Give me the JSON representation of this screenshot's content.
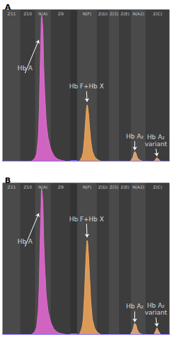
{
  "chart_data": [
    {
      "type": "area",
      "title": "A",
      "xlim": [
        0,
        300
      ],
      "ylim": [
        0,
        100
      ],
      "tick_labels": false,
      "grid": false,
      "zones": [
        {
          "label": "Z11",
          "start": 0,
          "end": 32
        },
        {
          "label": "Z10",
          "start": 32,
          "end": 58
        },
        {
          "label": "N(A)",
          "start": 58,
          "end": 87
        },
        {
          "label": "Z9",
          "start": 87,
          "end": 122
        },
        {
          "label": "N(F)",
          "start": 134,
          "end": 170
        },
        {
          "label": "Z(D)",
          "start": 170,
          "end": 191
        },
        {
          "label": "Z(S)",
          "start": 191,
          "end": 210
        },
        {
          "label": "Z(E)",
          "start": 210,
          "end": 231
        },
        {
          "label": "N(A2)",
          "start": 231,
          "end": 258
        },
        {
          "label": "Z(C)",
          "start": 258,
          "end": 300
        }
      ],
      "series": [
        {
          "name": "Hb A",
          "color": "#e86ad6",
          "x": [
            52,
            58,
            62,
            65,
            67,
            69,
            70,
            72,
            74,
            77,
            80,
            85,
            90,
            96,
            104,
            112
          ],
          "values": [
            0,
            2,
            8,
            25,
            55,
            85,
            96,
            88,
            60,
            35,
            20,
            10,
            5,
            2,
            0.5,
            0
          ]
        },
        {
          "name": "Hb F+Hb X",
          "color": "#f4a85a",
          "x": [
            138,
            143,
            146,
            149,
            151,
            152,
            154,
            157,
            160,
            164,
            170,
            176
          ],
          "values": [
            0,
            3,
            10,
            25,
            35,
            37,
            33,
            20,
            10,
            4,
            1,
            0
          ]
        },
        {
          "name": "Hb A₂",
          "color": "#f2b07a",
          "x": [
            230,
            234,
            237,
            238,
            240,
            243,
            247,
            251
          ],
          "values": [
            0,
            2,
            5.5,
            6,
            5,
            2,
            0.5,
            0
          ]
        },
        {
          "name": "Hb A₂ variant",
          "color": "#f2b07a",
          "x": [
            273,
            276,
            278,
            280,
            284
          ],
          "values": [
            0,
            1.2,
            2,
            1.2,
            0
          ]
        }
      ],
      "annotations": [
        {
          "text": "Hb A",
          "x": 40,
          "y": 58,
          "target_x": 65,
          "target_y": 80
        },
        {
          "text": "Hb F+Hb X",
          "x": 151,
          "y": 46,
          "target_x": 152,
          "target_y": 39
        },
        {
          "text": "Hb A₂",
          "x": 238,
          "y": 13,
          "target_x": 238,
          "target_y": 7
        },
        {
          "text": "Hb A₂\nvariant",
          "x": 276,
          "y": 8,
          "target_x": 278,
          "target_y": 3
        }
      ]
    },
    {
      "type": "area",
      "title": "B",
      "xlim": [
        0,
        300
      ],
      "ylim": [
        0,
        100
      ],
      "tick_labels": false,
      "grid": false,
      "zones": [
        {
          "label": "Z11",
          "start": 0,
          "end": 32
        },
        {
          "label": "Z10",
          "start": 32,
          "end": 58
        },
        {
          "label": "N(A)",
          "start": 58,
          "end": 87
        },
        {
          "label": "Z9",
          "start": 87,
          "end": 122
        },
        {
          "label": "N(F)",
          "start": 134,
          "end": 170
        },
        {
          "label": "Z(D)",
          "start": 170,
          "end": 191
        },
        {
          "label": "Z(S)",
          "start": 191,
          "end": 210
        },
        {
          "label": "Z(E)",
          "start": 210,
          "end": 231
        },
        {
          "label": "N(A2)",
          "start": 231,
          "end": 258
        },
        {
          "label": "Z(C)",
          "start": 258,
          "end": 300
        }
      ],
      "series": [
        {
          "name": "Hb A",
          "color": "#e86ad6",
          "x": [
            52,
            58,
            62,
            65,
            67,
            69,
            70,
            72,
            74,
            77,
            80,
            85,
            90,
            96,
            104,
            112
          ],
          "values": [
            0,
            2,
            8,
            25,
            55,
            85,
            96,
            88,
            60,
            35,
            20,
            10,
            5,
            2,
            0.5,
            0
          ]
        },
        {
          "name": "Hb F+Hb X",
          "color": "#f4a85a",
          "x": [
            138,
            143,
            146,
            149,
            151,
            152,
            154,
            157,
            160,
            164,
            170,
            176
          ],
          "values": [
            0,
            5,
            17,
            42,
            58,
            62,
            55,
            34,
            16,
            6,
            1.5,
            0
          ]
        },
        {
          "name": "Hb A₂",
          "color": "#f2b07a",
          "x": [
            230,
            234,
            237,
            238,
            240,
            243,
            247,
            251
          ],
          "values": [
            0,
            2.5,
            6.5,
            7,
            6,
            2.5,
            0.5,
            0
          ]
        },
        {
          "name": "Hb A₂ variant",
          "color": "#f2b07a",
          "x": [
            273,
            276,
            278,
            280,
            284
          ],
          "values": [
            0,
            2.5,
            4,
            2.5,
            0
          ]
        }
      ],
      "annotations": [
        {
          "text": "Hb A",
          "x": 40,
          "y": 58,
          "target_x": 65,
          "target_y": 80
        },
        {
          "text": "Hb F+Hb X",
          "x": 151,
          "y": 73,
          "target_x": 152,
          "target_y": 64
        },
        {
          "text": "Hb A₂",
          "x": 238,
          "y": 15,
          "target_x": 238,
          "target_y": 8
        },
        {
          "text": "Hb A₂\nvariant",
          "x": 276,
          "y": 11,
          "target_x": 278,
          "target_y": 5
        }
      ]
    }
  ]
}
